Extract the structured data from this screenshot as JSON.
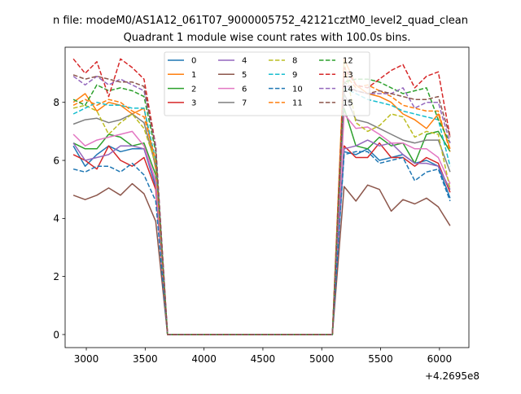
{
  "figure": {
    "suptitle": "n file: modeM0/AS1A12_061T07_9000005752_42121cztM0_level2_quad_clean",
    "title": "Quadrant 1 module wise count rates with 100.0s bins.",
    "offset_label": "+4.2695e8"
  },
  "chart_data": {
    "type": "line",
    "title": "Quadrant 1 module wise count rates with 100.0s bins.",
    "xlabel": "",
    "ylabel": "",
    "x_offset": 426950000,
    "xlim": [
      2820,
      6250
    ],
    "ylim": [
      -0.45,
      9.9
    ],
    "x_ticks": [
      3000,
      3500,
      4000,
      4500,
      5000,
      5500,
      6000
    ],
    "y_ticks": [
      0,
      2,
      4,
      6,
      8
    ],
    "x_tick_labels": [
      "3000",
      "3500",
      "4000",
      "4500",
      "5000",
      "5500",
      "6000"
    ],
    "y_tick_labels": [
      "0",
      "2",
      "4",
      "6",
      "8"
    ],
    "grid": false,
    "legend": {
      "placement": "top-center",
      "columns": 4
    },
    "x": [
      2890,
      2990,
      3090,
      3190,
      3290,
      3390,
      3490,
      3590,
      3690,
      3790,
      3890,
      3990,
      4090,
      4190,
      4290,
      4390,
      4490,
      4590,
      4690,
      4790,
      4890,
      4990,
      5090,
      5190,
      5290,
      5390,
      5490,
      5590,
      5690,
      5790,
      5890,
      5990,
      6090
    ],
    "series": [
      {
        "name": "0",
        "color": "#1f77b4",
        "dash": "solid",
        "values": [
          6.5,
          5.8,
          6.2,
          6.5,
          6.3,
          6.4,
          6.4,
          5.1,
          0,
          0,
          0,
          0,
          0,
          0,
          0,
          0,
          0,
          0,
          0,
          0,
          0,
          0,
          0,
          6.3,
          6.2,
          6.4,
          6.0,
          6.1,
          6.2,
          5.9,
          6.0,
          5.8,
          4.7
        ]
      },
      {
        "name": "1",
        "color": "#ff7f0e",
        "dash": "solid",
        "values": [
          8.0,
          8.3,
          7.7,
          8.0,
          7.9,
          7.6,
          7.8,
          5.7,
          0,
          0,
          0,
          0,
          0,
          0,
          0,
          0,
          0,
          0,
          0,
          0,
          0,
          0,
          0,
          9.5,
          8.6,
          8.3,
          8.2,
          8.0,
          7.6,
          7.4,
          7.1,
          7.6,
          6.4
        ]
      },
      {
        "name": "2",
        "color": "#2ca02c",
        "dash": "solid",
        "values": [
          6.6,
          6.4,
          6.4,
          6.9,
          6.8,
          6.5,
          6.6,
          5.5,
          0,
          0,
          0,
          0,
          0,
          0,
          0,
          0,
          0,
          0,
          0,
          0,
          0,
          0,
          0,
          7.8,
          6.5,
          6.4,
          6.8,
          6.5,
          6.6,
          5.9,
          6.9,
          7.0,
          6.3
        ]
      },
      {
        "name": "3",
        "color": "#d62728",
        "dash": "solid",
        "values": [
          6.2,
          6.0,
          5.7,
          6.5,
          6.0,
          5.8,
          6.1,
          5.0,
          0,
          0,
          0,
          0,
          0,
          0,
          0,
          0,
          0,
          0,
          0,
          0,
          0,
          0,
          0,
          6.5,
          6.1,
          6.1,
          6.6,
          6.1,
          6.1,
          5.8,
          6.1,
          5.9,
          4.9
        ]
      },
      {
        "name": "4",
        "color": "#9467bd",
        "dash": "solid",
        "values": [
          6.6,
          6.0,
          6.1,
          6.2,
          6.5,
          6.5,
          6.4,
          5.2,
          0,
          0,
          0,
          0,
          0,
          0,
          0,
          0,
          0,
          0,
          0,
          0,
          0,
          0,
          0,
          6.4,
          6.5,
          6.7,
          6.5,
          6.6,
          6.2,
          5.9,
          5.9,
          5.8,
          5.0
        ]
      },
      {
        "name": "5",
        "color": "#8c564b",
        "dash": "solid",
        "values": [
          4.8,
          4.65,
          4.8,
          5.05,
          4.8,
          5.2,
          4.85,
          3.9,
          0,
          0,
          0,
          0,
          0,
          0,
          0,
          0,
          0,
          0,
          0,
          0,
          0,
          0,
          0,
          5.1,
          4.6,
          5.15,
          5.0,
          4.25,
          4.65,
          4.5,
          4.7,
          4.4,
          3.75
        ]
      },
      {
        "name": "6",
        "color": "#e377c2",
        "dash": "solid",
        "values": [
          6.9,
          6.5,
          6.7,
          6.8,
          6.9,
          7.0,
          6.5,
          5.3,
          0,
          0,
          0,
          0,
          0,
          0,
          0,
          0,
          0,
          0,
          0,
          0,
          0,
          0,
          0,
          7.6,
          7.1,
          7.15,
          6.9,
          6.6,
          6.6,
          6.4,
          6.4,
          6.1,
          5.2
        ]
      },
      {
        "name": "7",
        "color": "#7f7f7f",
        "dash": "solid",
        "values": [
          7.25,
          7.4,
          7.45,
          7.3,
          7.4,
          7.6,
          7.3,
          5.8,
          0,
          0,
          0,
          0,
          0,
          0,
          0,
          0,
          0,
          0,
          0,
          0,
          0,
          0,
          0,
          8.3,
          7.4,
          7.3,
          7.1,
          6.9,
          6.7,
          6.6,
          6.7,
          6.7,
          5.6
        ]
      },
      {
        "name": "8",
        "color": "#bcbd22",
        "dash": "dashed",
        "values": [
          7.8,
          7.9,
          7.7,
          6.9,
          7.3,
          7.6,
          7.1,
          5.9,
          0,
          0,
          0,
          0,
          0,
          0,
          0,
          0,
          0,
          0,
          0,
          0,
          0,
          0,
          0,
          9.4,
          7.3,
          7.0,
          7.2,
          7.6,
          7.5,
          6.8,
          7.0,
          6.9,
          5.0
        ]
      },
      {
        "name": "9",
        "color": "#17becf",
        "dash": "dashed",
        "values": [
          7.6,
          7.8,
          8.0,
          7.9,
          7.9,
          7.8,
          7.8,
          6.0,
          0,
          0,
          0,
          0,
          0,
          0,
          0,
          0,
          0,
          0,
          0,
          0,
          0,
          0,
          0,
          8.5,
          8.3,
          8.1,
          8.0,
          7.9,
          7.7,
          7.6,
          7.5,
          7.4,
          5.8
        ]
      },
      {
        "name": "10",
        "color": "#1f77b4",
        "dash": "dashed",
        "values": [
          5.7,
          5.6,
          5.8,
          5.8,
          5.6,
          5.9,
          5.5,
          4.6,
          0,
          0,
          0,
          0,
          0,
          0,
          0,
          0,
          0,
          0,
          0,
          0,
          0,
          0,
          0,
          6.2,
          6.3,
          6.3,
          5.9,
          6.0,
          6.1,
          5.3,
          5.6,
          5.7,
          4.6
        ]
      },
      {
        "name": "11",
        "color": "#ff7f0e",
        "dash": "dashed",
        "values": [
          7.9,
          8.1,
          7.9,
          8.1,
          8.0,
          7.7,
          7.5,
          6.0,
          0,
          0,
          0,
          0,
          0,
          0,
          0,
          0,
          0,
          0,
          0,
          0,
          0,
          0,
          0,
          9.0,
          8.5,
          8.6,
          8.4,
          8.2,
          7.9,
          7.8,
          7.7,
          7.7,
          6.3
        ]
      },
      {
        "name": "12",
        "color": "#2ca02c",
        "dash": "dashed",
        "values": [
          8.1,
          7.9,
          8.6,
          8.4,
          8.5,
          8.4,
          8.2,
          6.3,
          0,
          0,
          0,
          0,
          0,
          0,
          0,
          0,
          0,
          0,
          0,
          0,
          0,
          0,
          0,
          8.7,
          8.8,
          8.8,
          8.7,
          8.5,
          8.3,
          8.4,
          8.5,
          7.4,
          6.6
        ]
      },
      {
        "name": "13",
        "color": "#d62728",
        "dash": "dashed",
        "values": [
          9.5,
          9.0,
          9.4,
          8.2,
          9.5,
          9.2,
          8.8,
          6.5,
          0,
          0,
          0,
          0,
          0,
          0,
          0,
          0,
          0,
          0,
          0,
          0,
          0,
          0,
          0,
          9.2,
          8.6,
          8.5,
          8.8,
          9.1,
          9.3,
          8.5,
          8.9,
          9.05,
          6.8
        ]
      },
      {
        "name": "14",
        "color": "#9467bd",
        "dash": "dashed",
        "values": [
          8.9,
          8.6,
          8.9,
          8.6,
          8.8,
          8.6,
          8.4,
          6.5,
          0,
          0,
          0,
          0,
          0,
          0,
          0,
          0,
          0,
          0,
          0,
          0,
          0,
          0,
          0,
          8.6,
          8.4,
          8.3,
          8.3,
          8.3,
          8.5,
          7.8,
          8.0,
          8.0,
          6.6
        ]
      },
      {
        "name": "15",
        "color": "#8c564b",
        "dash": "dashed",
        "values": [
          8.95,
          8.8,
          8.9,
          8.8,
          8.7,
          8.7,
          8.55,
          6.4,
          0,
          0,
          0,
          0,
          0,
          0,
          0,
          0,
          0,
          0,
          0,
          0,
          0,
          0,
          0,
          8.7,
          8.4,
          8.3,
          8.4,
          8.3,
          8.2,
          8.1,
          8.1,
          8.2,
          6.8
        ]
      }
    ]
  }
}
